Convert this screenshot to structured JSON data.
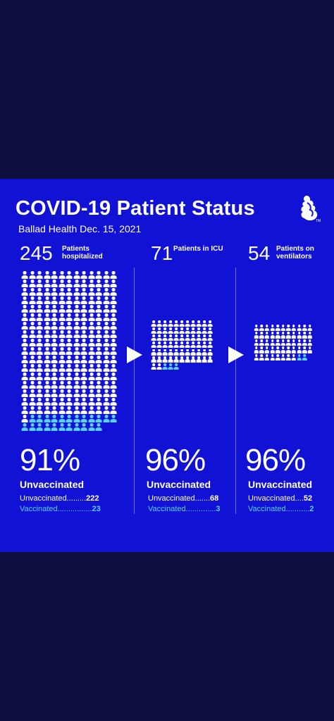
{
  "header": {
    "title": "COVID-19 Patient Status",
    "subtitle": "Ballad Health Dec. 15, 2021",
    "logo_mark": "TM"
  },
  "colors": {
    "page_background": "#0d0d3f",
    "card_background": "#1212d4",
    "unvaccinated": "#ffffff",
    "vaccinated": "#5ad0ff"
  },
  "columns": [
    {
      "count": "245",
      "label": "Patients hospitalized",
      "percent": "91%",
      "status_label": "Unvaccinated",
      "unvaccinated_text": "Unvaccinated.........",
      "unvaccinated_value": "222",
      "vaccinated_text": "Vaccinated................",
      "vaccinated_value": "23",
      "icons_total": 245,
      "icons_vaccinated": 23
    },
    {
      "count": "71",
      "label": "Patients in ICU",
      "percent": "96%",
      "status_label": "Unvaccinated",
      "unvaccinated_text": "Unvaccinated.......",
      "unvaccinated_value": "68",
      "vaccinated_text": "Vaccinated..............",
      "vaccinated_value": "3",
      "icons_total": 71,
      "icons_vaccinated": 3
    },
    {
      "count": "54",
      "label": "Patients on ventilators",
      "percent": "96%",
      "status_label": "Unvaccinated",
      "unvaccinated_text": "Unvaccinated....",
      "unvaccinated_value": "52",
      "vaccinated_text": "Vaccinated...........",
      "vaccinated_value": "2",
      "icons_total": 54,
      "icons_vaccinated": 2
    }
  ]
}
